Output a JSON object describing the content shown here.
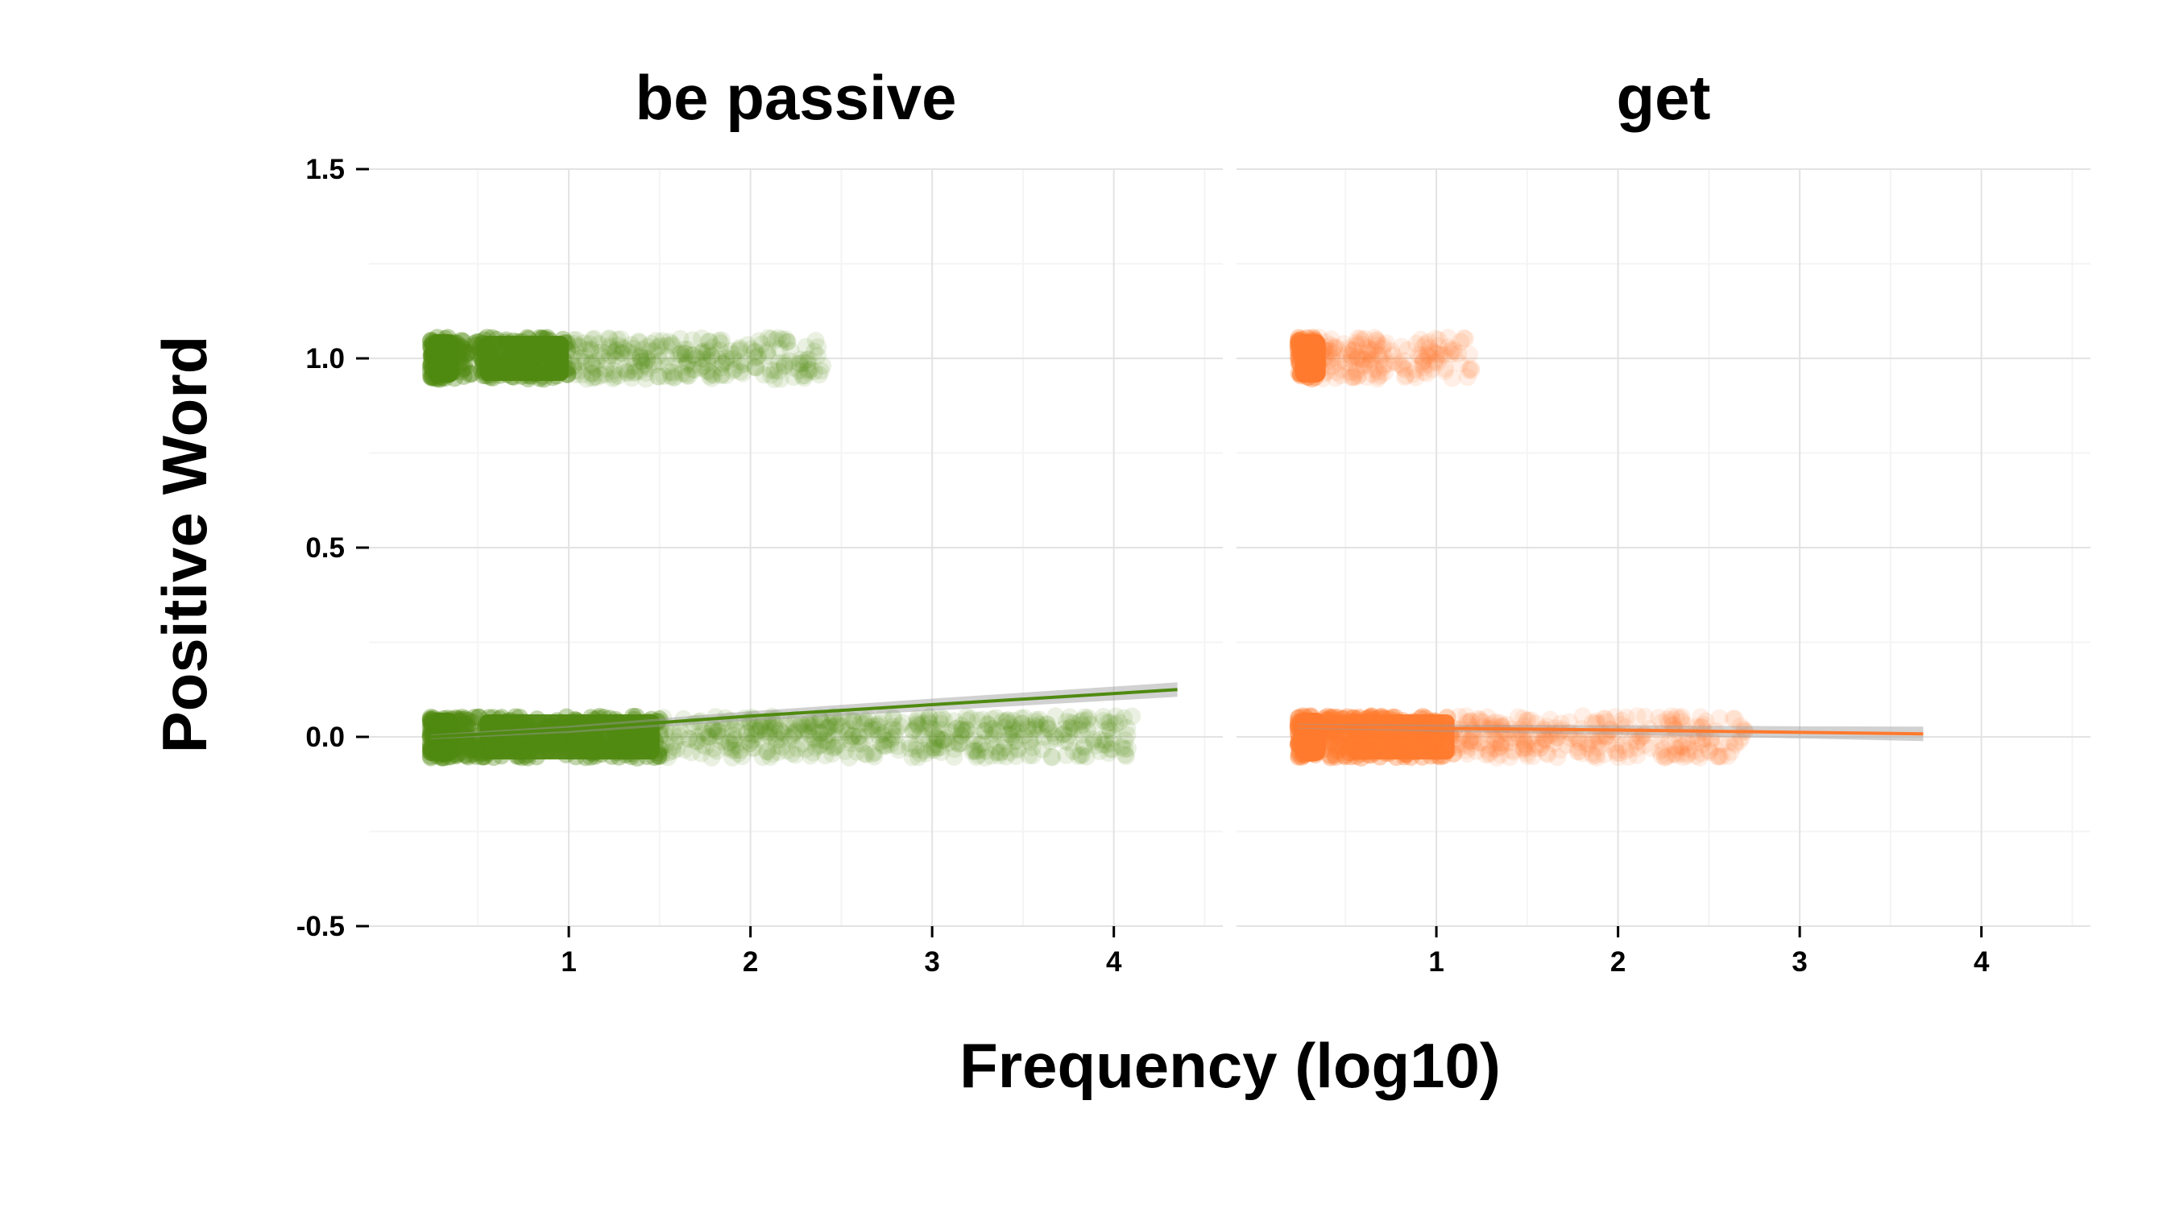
{
  "chart_data": {
    "type": "scatter",
    "xlabel": "Frequency (log10)",
    "ylabel": "Positive Word",
    "xlim": [
      -0.1,
      4.6
    ],
    "ylim": [
      -0.5,
      1.5
    ],
    "x_ticks": [
      1,
      2,
      3,
      4
    ],
    "x_tick_labels": [
      "1",
      "2",
      "3",
      "4"
    ],
    "y_ticks": [
      -0.5,
      0.0,
      0.5,
      1.0,
      1.5
    ],
    "y_tick_labels": [
      "-0.5",
      "0.0",
      "0.5",
      "1.0",
      "1.5"
    ],
    "grid": true,
    "legend": "none",
    "facets": [
      {
        "title": "be passive",
        "color": "#4f8a10",
        "points": {
          "y0": {
            "x_min": 0.24,
            "x_max": 4.1,
            "dense_to": 1.5
          },
          "y1": {
            "x_min": 0.24,
            "x_max": 2.4,
            "dense_to": 1.0
          }
        },
        "trend": {
          "x": [
            0.24,
            1.0,
            2.0,
            3.0,
            4.35
          ],
          "y": [
            0.0,
            0.02,
            0.055,
            0.085,
            0.125
          ]
        }
      },
      {
        "title": "get",
        "color": "#ff7a2e",
        "points": {
          "y0": {
            "x_min": 0.24,
            "x_max": 2.7,
            "dense_to": 1.1
          },
          "y1": {
            "x_min": 0.24,
            "x_max": 1.2,
            "dense_to": 0.35
          }
        },
        "trend": {
          "x": [
            0.24,
            1.0,
            2.0,
            3.0,
            3.68
          ],
          "y": [
            0.028,
            0.023,
            0.018,
            0.012,
            0.008
          ]
        }
      }
    ]
  }
}
